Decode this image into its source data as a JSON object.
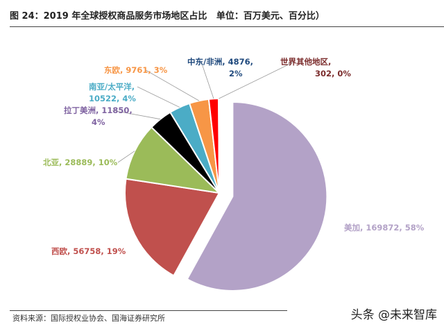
{
  "title": "图 24：2019 年全球授权商品服务市场地区占比   单位：百万美元、百分比）",
  "source": "资料来源：国际授权业协会、国海证券研究所",
  "watermark": "头条 @未来智库",
  "chart_data": {
    "type": "pie",
    "title": "2019 年全球授权商品服务市场地区占比",
    "unit": "百万美元、百分比",
    "slices": [
      {
        "name": "美加",
        "value": 169872,
        "pct": "58%",
        "color": "#b3a2c7",
        "label": "美加, 169872, 58%"
      },
      {
        "name": "西欧",
        "value": 56758,
        "pct": "19%",
        "color": "#c0504d",
        "label": "西欧, 56758, 19%"
      },
      {
        "name": "北亚",
        "value": 28889,
        "pct": "10%",
        "color": "#9bbb59",
        "label": "北亚, 28889, 10%"
      },
      {
        "name": "拉丁美洲",
        "value": 11850,
        "pct": "4%",
        "color": "#000000",
        "labelColor": "#7f63a1",
        "label": "拉丁美洲, 11850,",
        "label2": "4%"
      },
      {
        "name": "南亚/太平洋",
        "value": 10522,
        "pct": "4%",
        "color": "#4bacc6",
        "label": "南亚/太平洋,",
        "label2": "10522, 4%"
      },
      {
        "name": "东欧",
        "value": 9761,
        "pct": "3%",
        "color": "#f79646",
        "label": "东欧, 9761, 3%"
      },
      {
        "name": "中东/非洲",
        "value": 4876,
        "pct": "2%",
        "color": "#ff0000",
        "labelColor": "#1f497d",
        "label": "中东/非洲, 4876,",
        "label2": "2%"
      },
      {
        "name": "世界其他地区",
        "value": 302,
        "pct": "0%",
        "color": "#c00000",
        "labelColor": "#7b2c2c",
        "label": "世界其他地区,",
        "label2": "302, 0%"
      }
    ]
  }
}
